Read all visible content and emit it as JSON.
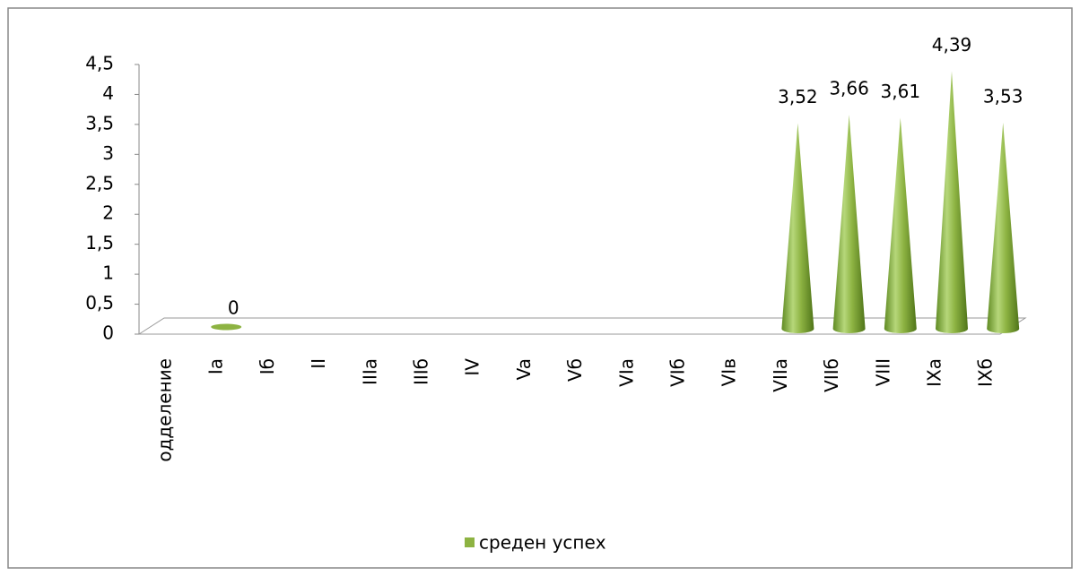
{
  "chart_data": {
    "type": "cone",
    "categories": [
      "одделение",
      "Ia",
      "Iб",
      "II",
      "IIIa",
      "IIIб",
      "IV",
      "Va",
      "Vб",
      "VIa",
      "VIб",
      "VIв",
      "VIIa",
      "VIIб",
      "VIII",
      "IXa",
      "IXб"
    ],
    "series": [
      {
        "name": "среден успех",
        "color": "#8db342",
        "values": [
          null,
          0,
          null,
          null,
          null,
          null,
          null,
          null,
          null,
          null,
          null,
          null,
          3.52,
          3.66,
          3.61,
          4.39,
          3.53
        ],
        "value_labels": [
          null,
          "0",
          null,
          null,
          null,
          null,
          null,
          null,
          null,
          null,
          null,
          null,
          "3,52",
          "3,66",
          "3,61",
          "4,39",
          "3,53"
        ]
      }
    ],
    "ylim": [
      0,
      4.5
    ],
    "yticks": [
      0,
      {
        "value": 0.5,
        "label": "0,5"
      },
      1,
      {
        "value": 1.5,
        "label": "1,5"
      },
      2,
      {
        "value": 2.5,
        "label": "2,5"
      },
      3,
      {
        "value": 3.5,
        "label": "3,5"
      },
      4,
      {
        "value": 4.5,
        "label": "4,5"
      }
    ],
    "legend": "bottom"
  }
}
